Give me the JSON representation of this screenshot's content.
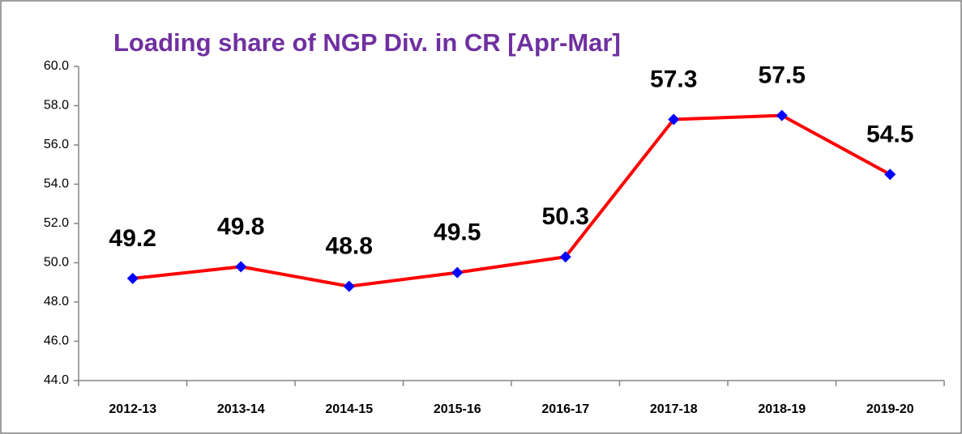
{
  "chart_data": {
    "type": "line",
    "title": "Loading share of NGP Div. in CR [Apr-Mar]",
    "categories": [
      "2012-13",
      "2013-14",
      "2014-15",
      "2015-16",
      "2016-17",
      "2017-18",
      "2018-19",
      "2019-20"
    ],
    "series": [
      {
        "name": "Loading share",
        "color": "#ff0000",
        "marker_color": "#0000ff",
        "values": [
          49.2,
          49.8,
          48.8,
          49.5,
          50.3,
          57.3,
          57.5,
          54.5
        ]
      }
    ],
    "ylim": [
      44,
      60
    ],
    "yticks": [
      {
        "value": 44,
        "label": "44.0"
      },
      {
        "value": 46,
        "label": "46.0"
      },
      {
        "value": 48,
        "label": "48.0"
      },
      {
        "value": 50,
        "label": "50.0"
      },
      {
        "value": 52,
        "label": "52.0"
      },
      {
        "value": 54,
        "label": "54.0"
      },
      {
        "value": 56,
        "label": "56.0"
      },
      {
        "value": 58,
        "label": "58.0"
      },
      {
        "value": 60,
        "label": "60.0"
      }
    ],
    "title_color": "#7030a0",
    "grid": false
  }
}
